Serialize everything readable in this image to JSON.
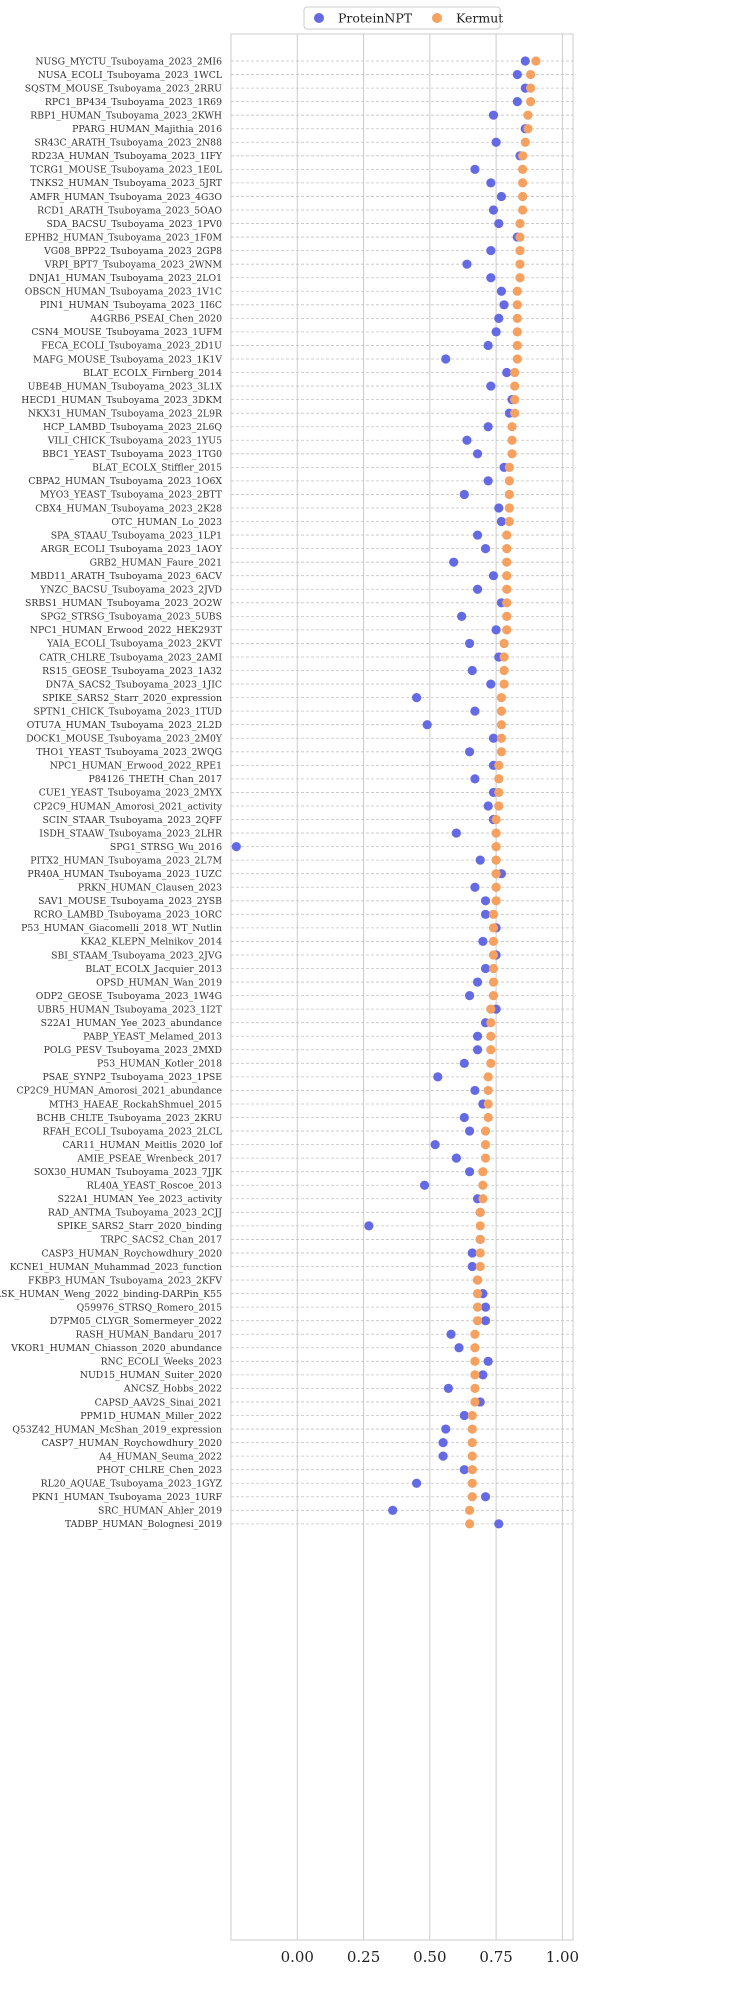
{
  "chart_data": {
    "type": "scatter",
    "orientation": "horizontal-dot",
    "xlim": [
      -0.25,
      1.04
    ],
    "xticks": [
      0.0,
      0.25,
      0.5,
      0.75,
      1.0
    ],
    "xtick_labels": [
      "0.00",
      "0.25",
      "0.50",
      "0.75",
      "1.00"
    ],
    "grid": true,
    "legend_position": "top-center",
    "series": [
      {
        "name": "ProteinNPT",
        "color": "#6469e4"
      },
      {
        "name": "Kermut",
        "color": "#f6a15f"
      }
    ],
    "categories": [
      "NUSG_MYCTU_Tsuboyama_2023_2MI6",
      "NUSA_ECOLI_Tsuboyama_2023_1WCL",
      "SQSTM_MOUSE_Tsuboyama_2023_2RRU",
      "RPC1_BP434_Tsuboyama_2023_1R69",
      "RBP1_HUMAN_Tsuboyama_2023_2KWH",
      "PPARG_HUMAN_Majithia_2016",
      "SR43C_ARATH_Tsuboyama_2023_2N88",
      "RD23A_HUMAN_Tsuboyama_2023_1IFY",
      "TCRG1_MOUSE_Tsuboyama_2023_1E0L",
      "TNKS2_HUMAN_Tsuboyama_2023_5JRT",
      "AMFR_HUMAN_Tsuboyama_2023_4G3O",
      "RCD1_ARATH_Tsuboyama_2023_5OAO",
      "SDA_BACSU_Tsuboyama_2023_1PV0",
      "EPHB2_HUMAN_Tsuboyama_2023_1F0M",
      "VG08_BPP22_Tsuboyama_2023_2GP8",
      "VRPI_BPT7_Tsuboyama_2023_2WNM",
      "DNJA1_HUMAN_Tsuboyama_2023_2LO1",
      "OBSCN_HUMAN_Tsuboyama_2023_1V1C",
      "PIN1_HUMAN_Tsuboyama_2023_1I6C",
      "A4GRB6_PSEAI_Chen_2020",
      "CSN4_MOUSE_Tsuboyama_2023_1UFM",
      "FECA_ECOLI_Tsuboyama_2023_2D1U",
      "MAFG_MOUSE_Tsuboyama_2023_1K1V",
      "BLAT_ECOLX_Firnberg_2014",
      "UBE4B_HUMAN_Tsuboyama_2023_3L1X",
      "HECD1_HUMAN_Tsuboyama_2023_3DKM",
      "NKX31_HUMAN_Tsuboyama_2023_2L9R",
      "HCP_LAMBD_Tsuboyama_2023_2L6Q",
      "VILI_CHICK_Tsuboyama_2023_1YU5",
      "BBC1_YEAST_Tsuboyama_2023_1TG0",
      "BLAT_ECOLX_Stiffler_2015",
      "CBPA2_HUMAN_Tsuboyama_2023_1O6X",
      "MYO3_YEAST_Tsuboyama_2023_2BTT",
      "CBX4_HUMAN_Tsuboyama_2023_2K28",
      "OTC_HUMAN_Lo_2023",
      "SPA_STAAU_Tsuboyama_2023_1LP1",
      "ARGR_ECOLI_Tsuboyama_2023_1AOY",
      "GRB2_HUMAN_Faure_2021",
      "MBD11_ARATH_Tsuboyama_2023_6ACV",
      "YNZC_BACSU_Tsuboyama_2023_2JVD",
      "SRBS1_HUMAN_Tsuboyama_2023_2O2W",
      "SPG2_STRSG_Tsuboyama_2023_5UBS",
      "NPC1_HUMAN_Erwood_2022_HEK293T",
      "YAIA_ECOLI_Tsuboyama_2023_2KVT",
      "CATR_CHLRE_Tsuboyama_2023_2AMI",
      "RS15_GEOSE_Tsuboyama_2023_1A32",
      "DN7A_SACS2_Tsuboyama_2023_1JIC",
      "SPIKE_SARS2_Starr_2020_expression",
      "SPTN1_CHICK_Tsuboyama_2023_1TUD",
      "OTU7A_HUMAN_Tsuboyama_2023_2L2D",
      "DOCK1_MOUSE_Tsuboyama_2023_2M0Y",
      "THO1_YEAST_Tsuboyama_2023_2WQG",
      "NPC1_HUMAN_Erwood_2022_RPE1",
      "P84126_THETH_Chan_2017",
      "CUE1_YEAST_Tsuboyama_2023_2MYX",
      "CP2C9_HUMAN_Amorosi_2021_activity",
      "SCIN_STAAR_Tsuboyama_2023_2QFF",
      "ISDH_STAAW_Tsuboyama_2023_2LHR",
      "SPG1_STRSG_Wu_2016",
      "PITX2_HUMAN_Tsuboyama_2023_2L7M",
      "PR40A_HUMAN_Tsuboyama_2023_1UZC",
      "PRKN_HUMAN_Clausen_2023",
      "SAV1_MOUSE_Tsuboyama_2023_2YSB",
      "RCRO_LAMBD_Tsuboyama_2023_1ORC",
      "P53_HUMAN_Giacomelli_2018_WT_Nutlin",
      "KKA2_KLEPN_Melnikov_2014",
      "SBI_STAAM_Tsuboyama_2023_2JVG",
      "BLAT_ECOLX_Jacquier_2013",
      "OPSD_HUMAN_Wan_2019",
      "ODP2_GEOSE_Tsuboyama_2023_1W4G",
      "UBR5_HUMAN_Tsuboyama_2023_1I2T",
      "S22A1_HUMAN_Yee_2023_abundance",
      "PABP_YEAST_Melamed_2013",
      "POLG_PESV_Tsuboyama_2023_2MXD",
      "P53_HUMAN_Kotler_2018",
      "PSAE_SYNP2_Tsuboyama_2023_1PSE",
      "CP2C9_HUMAN_Amorosi_2021_abundance",
      "MTH3_HAEAE_RockahShmuel_2015",
      "BCHB_CHLTE_Tsuboyama_2023_2KRU",
      "RFAH_ECOLI_Tsuboyama_2023_2LCL",
      "CAR11_HUMAN_Meitlis_2020_lof",
      "AMIE_PSEAE_Wrenbeck_2017",
      "SOX30_HUMAN_Tsuboyama_2023_7JJK",
      "RL40A_YEAST_Roscoe_2013",
      "S22A1_HUMAN_Yee_2023_activity",
      "RAD_ANTMA_Tsuboyama_2023_2CJJ",
      "SPIKE_SARS2_Starr_2020_binding",
      "TRPC_SACS2_Chan_2017",
      "CASP3_HUMAN_Roychowdhury_2020",
      "KCNE1_HUMAN_Muhammad_2023_function",
      "FKBP3_HUMAN_Tsuboyama_2023_2KFV",
      "RASK_HUMAN_Weng_2022_binding-DARPin_K55",
      "Q59976_STRSQ_Romero_2015",
      "D7PM05_CLYGR_Somermeyer_2022",
      "RASH_HUMAN_Bandaru_2017",
      "VKOR1_HUMAN_Chiasson_2020_abundance",
      "RNC_ECOLI_Weeks_2023",
      "NUD15_HUMAN_Suiter_2020",
      "ANCSZ_Hobbs_2022",
      "CAPSD_AAV2S_Sinai_2021",
      "PPM1D_HUMAN_Miller_2022",
      "Q53Z42_HUMAN_McShan_2019_expression",
      "CASP7_HUMAN_Roychowdhury_2020",
      "A4_HUMAN_Seuma_2022",
      "PHOT_CHLRE_Chen_2023",
      "RL20_AQUAE_Tsuboyama_2023_1GYZ",
      "PKN1_HUMAN_Tsuboyama_2023_1URF",
      "SRC_HUMAN_Ahler_2019",
      "TADBP_HUMAN_Bolognesi_2019"
    ],
    "values": {
      "ProteinNPT": [
        0.86,
        0.83,
        0.86,
        0.83,
        0.74,
        0.86,
        0.75,
        0.84,
        0.67,
        0.73,
        0.77,
        0.74,
        0.76,
        0.83,
        0.73,
        0.64,
        0.73,
        0.77,
        0.78,
        0.76,
        0.75,
        0.72,
        0.56,
        0.79,
        0.73,
        0.81,
        0.8,
        0.72,
        0.64,
        0.68,
        0.78,
        0.72,
        0.63,
        0.76,
        0.77,
        0.68,
        0.71,
        0.59,
        0.74,
        0.68,
        0.77,
        0.62,
        0.75,
        0.65,
        0.76,
        0.66,
        0.73,
        0.45,
        0.67,
        0.49,
        0.74,
        0.65,
        0.74,
        0.67,
        0.74,
        0.72,
        0.74,
        0.6,
        -0.23,
        0.69,
        0.77,
        0.67,
        0.71,
        0.71,
        0.75,
        0.7,
        0.75,
        0.71,
        0.68,
        0.65,
        0.75,
        0.71,
        0.68,
        0.68,
        0.63,
        0.53,
        0.67,
        0.7,
        0.63,
        0.65,
        0.52,
        0.6,
        0.65,
        0.48,
        0.68,
        0.69,
        0.27,
        0.69,
        0.66,
        0.66,
        0.68,
        0.7,
        0.71,
        0.71,
        0.58,
        0.61,
        0.72,
        0.7,
        0.57,
        0.69,
        0.63,
        0.56,
        0.55,
        0.55,
        0.63,
        0.45,
        0.71,
        0.36,
        0.76
      ],
      "Kermut": [
        0.9,
        0.88,
        0.88,
        0.88,
        0.87,
        0.87,
        0.86,
        0.85,
        0.85,
        0.85,
        0.85,
        0.85,
        0.84,
        0.84,
        0.84,
        0.84,
        0.84,
        0.83,
        0.83,
        0.83,
        0.83,
        0.83,
        0.83,
        0.82,
        0.82,
        0.82,
        0.82,
        0.81,
        0.81,
        0.81,
        0.8,
        0.8,
        0.8,
        0.8,
        0.8,
        0.79,
        0.79,
        0.79,
        0.79,
        0.79,
        0.79,
        0.79,
        0.79,
        0.78,
        0.78,
        0.78,
        0.78,
        0.77,
        0.77,
        0.77,
        0.77,
        0.77,
        0.76,
        0.76,
        0.76,
        0.76,
        0.75,
        0.75,
        0.75,
        0.75,
        0.75,
        0.75,
        0.75,
        0.74,
        0.74,
        0.74,
        0.74,
        0.74,
        0.74,
        0.74,
        0.73,
        0.73,
        0.73,
        0.73,
        0.73,
        0.72,
        0.72,
        0.72,
        0.72,
        0.71,
        0.71,
        0.71,
        0.7,
        0.7,
        0.7,
        0.69,
        0.69,
        0.69,
        0.69,
        0.69,
        0.68,
        0.68,
        0.68,
        0.68,
        0.67,
        0.67,
        0.67,
        0.67,
        0.67,
        0.67,
        0.66,
        0.66,
        0.66,
        0.66,
        0.66,
        0.66,
        0.66,
        0.65,
        0.65
      ]
    }
  }
}
